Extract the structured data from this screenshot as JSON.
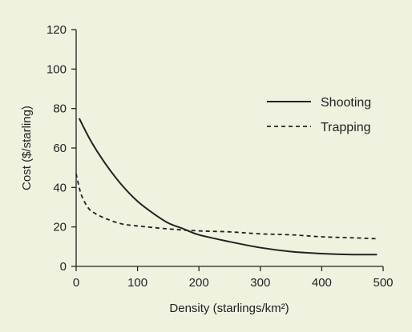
{
  "colors": {
    "background": "#eef2df",
    "ink": "#222222"
  },
  "chart_data": {
    "type": "line",
    "xlabel": "Density (starlings/km²)",
    "ylabel": "Cost ($/starling)",
    "xlim": [
      0,
      500
    ],
    "ylim": [
      0,
      120
    ],
    "x_ticks": [
      "0",
      "100",
      "200",
      "300",
      "400",
      "500"
    ],
    "y_ticks": [
      "0",
      "20",
      "40",
      "60",
      "80",
      "100",
      "120"
    ],
    "grid": false,
    "legend_position": "top-right",
    "series": [
      {
        "name": "Shooting",
        "style": "solid",
        "x": [
          5,
          25,
          50,
          75,
          100,
          125,
          150,
          175,
          200,
          250,
          300,
          350,
          400,
          450,
          490
        ],
        "y": [
          75,
          63,
          51,
          41,
          33,
          27,
          22,
          19,
          16,
          12.5,
          9.5,
          7.5,
          6.5,
          6,
          6
        ]
      },
      {
        "name": "Trapping",
        "style": "dashed",
        "x": [
          0,
          5,
          10,
          20,
          30,
          50,
          75,
          100,
          150,
          200,
          250,
          300,
          350,
          400,
          450,
          490
        ],
        "y": [
          47,
          40,
          35,
          29.5,
          27,
          24,
          21.5,
          20.5,
          19,
          18,
          17.5,
          16.5,
          16,
          15,
          14.5,
          14
        ]
      }
    ]
  }
}
